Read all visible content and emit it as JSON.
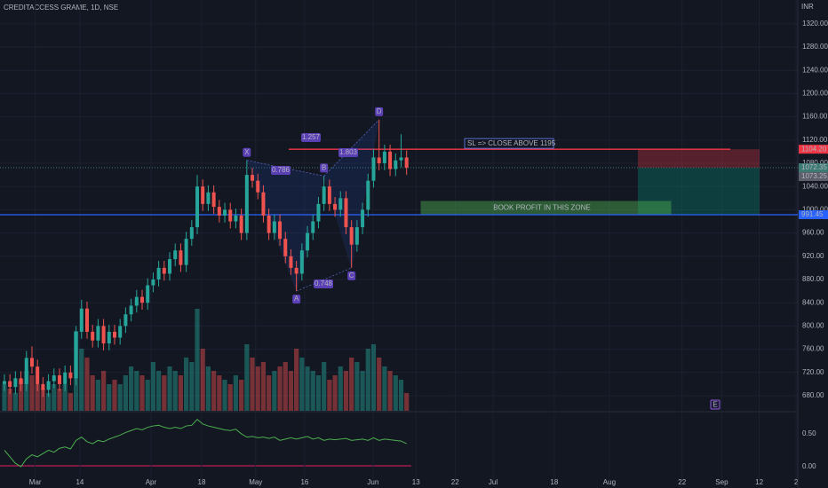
{
  "chart_data": {
    "type": "candlestick",
    "title": "CREDITACCESS GRAME, 1D, NSE",
    "currency": "INR",
    "up_color": "#26a69a",
    "down_color": "#ef5350",
    "open": [
      700,
      705,
      695,
      710,
      700,
      745,
      730,
      700,
      690,
      705,
      715,
      700,
      720,
      710,
      790,
      830,
      790,
      775,
      800,
      770,
      790,
      780,
      800,
      820,
      835,
      850,
      840,
      870,
      880,
      900,
      890,
      915,
      930,
      905,
      950,
      970,
      1040,
      1010,
      1030,
      1005,
      990,
      1000,
      980,
      990,
      960,
      1060,
      1050,
      1030,
      990,
      960,
      980,
      950,
      920,
      900,
      890,
      930,
      960,
      980,
      1010,
      1040,
      1010,
      1000,
      1020,
      970,
      940,
      970,
      1000,
      1050,
      1090,
      1080,
      1100,
      1070,
      1085,
      1090
    ],
    "high": [
      717,
      717,
      722,
      722,
      757,
      765,
      742,
      712,
      717,
      727,
      727,
      732,
      732,
      800,
      845,
      842,
      802,
      812,
      812,
      802,
      802,
      812,
      832,
      847,
      862,
      862,
      882,
      892,
      912,
      912,
      927,
      942,
      942,
      962,
      982,
      1060,
      1052,
      1042,
      1042,
      1017,
      1012,
      1012,
      1002,
      1002,
      1085,
      1072,
      1062,
      1042,
      1002,
      992,
      992,
      962,
      932,
      912,
      942,
      972,
      992,
      1022,
      1058,
      1052,
      1022,
      1032,
      1032,
      982,
      982,
      1012,
      1062,
      1105,
      1155,
      1112,
      1112,
      1097,
      1130,
      1102
    ],
    "low": [
      688,
      683,
      683,
      688,
      688,
      718,
      688,
      678,
      678,
      693,
      688,
      688,
      698,
      698,
      778,
      778,
      763,
      763,
      758,
      758,
      768,
      768,
      788,
      808,
      823,
      828,
      828,
      858,
      868,
      878,
      878,
      903,
      893,
      893,
      938,
      958,
      998,
      998,
      993,
      978,
      978,
      968,
      968,
      948,
      948,
      1038,
      1018,
      978,
      948,
      948,
      938,
      908,
      888,
      860,
      878,
      918,
      948,
      968,
      998,
      998,
      988,
      988,
      958,
      900,
      928,
      958,
      988,
      1038,
      1068,
      1068,
      1058,
      1058,
      1073,
      1060
    ],
    "close": [
      705,
      695,
      710,
      700,
      745,
      730,
      700,
      690,
      705,
      715,
      700,
      720,
      710,
      790,
      830,
      790,
      775,
      800,
      770,
      790,
      780,
      800,
      820,
      835,
      850,
      840,
      870,
      880,
      900,
      890,
      915,
      930,
      905,
      950,
      970,
      1040,
      1010,
      1030,
      1005,
      990,
      1000,
      980,
      990,
      960,
      1060,
      1050,
      1030,
      990,
      960,
      980,
      950,
      920,
      900,
      890,
      930,
      960,
      980,
      1010,
      1040,
      1010,
      1000,
      1020,
      970,
      940,
      970,
      1000,
      1050,
      1090,
      1080,
      1100,
      1070,
      1085,
      1090,
      1072.35
    ],
    "ylim": [
      654,
      1361
    ],
    "yticks": [
      {
        "value": 680,
        "label": "680.00"
      },
      {
        "value": 720,
        "label": "720.00"
      },
      {
        "value": 760,
        "label": "760.00"
      },
      {
        "value": 800,
        "label": "800.00"
      },
      {
        "value": 840,
        "label": "840.00"
      },
      {
        "value": 880,
        "label": "880.00"
      },
      {
        "value": 920,
        "label": "920.00"
      },
      {
        "value": 960,
        "label": "960.00"
      },
      {
        "value": 1000,
        "label": "1000.00"
      },
      {
        "value": 1040,
        "label": "1040.00"
      },
      {
        "value": 1080,
        "label": "1080.00"
      },
      {
        "value": 1120,
        "label": "1120.00"
      },
      {
        "value": 1160,
        "label": "1160.00"
      },
      {
        "value": 1200,
        "label": "1200.00"
      },
      {
        "value": 1240,
        "label": "1240.00"
      },
      {
        "value": 1280,
        "label": "1280.00"
      },
      {
        "value": 1320,
        "label": "1320.00"
      }
    ],
    "xlim": [
      -0.8,
      144
    ],
    "xticks": [
      {
        "value": 5.6,
        "label": "Mar"
      },
      {
        "value": 13.7,
        "label": "14"
      },
      {
        "value": 26.6,
        "label": "Apr"
      },
      {
        "value": 35.8,
        "label": "18"
      },
      {
        "value": 45.6,
        "label": "May"
      },
      {
        "value": 54.5,
        "label": "16"
      },
      {
        "value": 66.9,
        "label": "Jun"
      },
      {
        "value": 74.7,
        "label": "13"
      },
      {
        "value": 81.8,
        "label": "22"
      },
      {
        "value": 88.7,
        "label": "Jul"
      },
      {
        "value": 99.8,
        "label": "18"
      },
      {
        "value": 109.8,
        "label": "Aug"
      },
      {
        "value": 123,
        "label": "22"
      },
      {
        "value": 130.2,
        "label": "Sep"
      },
      {
        "value": 137,
        "label": "12"
      },
      {
        "value": 143.7,
        "label": "2"
      }
    ],
    "volume": {
      "ylim": [
        0,
        120
      ],
      "values": [
        30,
        25,
        20,
        35,
        45,
        40,
        30,
        25,
        20,
        30,
        25,
        30,
        20,
        90,
        70,
        60,
        40,
        35,
        45,
        30,
        35,
        30,
        40,
        50,
        45,
        40,
        35,
        55,
        45,
        40,
        50,
        45,
        40,
        60,
        55,
        115,
        70,
        50,
        45,
        40,
        35,
        30,
        40,
        35,
        75,
        60,
        50,
        55,
        40,
        45,
        50,
        55,
        45,
        70,
        60,
        50,
        45,
        40,
        55,
        35,
        40,
        50,
        45,
        60,
        55,
        45,
        70,
        75,
        60,
        50,
        45,
        40,
        35,
        20
      ]
    },
    "indicator": {
      "color": "#4caf50",
      "ylim": [
        -0.19,
        0.81
      ],
      "yticks": [
        {
          "value": 0.5,
          "label": "0.50"
        },
        {
          "value": 0,
          "label": "0.00"
        }
      ],
      "values": [
        0.25,
        0.15,
        0.05,
        0.0,
        0.12,
        0.18,
        0.15,
        0.2,
        0.25,
        0.22,
        0.28,
        0.3,
        0.27,
        0.4,
        0.45,
        0.38,
        0.35,
        0.4,
        0.38,
        0.42,
        0.45,
        0.48,
        0.52,
        0.55,
        0.58,
        0.56,
        0.6,
        0.62,
        0.63,
        0.6,
        0.58,
        0.6,
        0.58,
        0.62,
        0.63,
        0.72,
        0.65,
        0.62,
        0.6,
        0.58,
        0.56,
        0.55,
        0.57,
        0.5,
        0.45,
        0.46,
        0.44,
        0.45,
        0.43,
        0.45,
        0.4,
        0.42,
        0.44,
        0.42,
        0.44,
        0.46,
        0.42,
        0.44,
        0.4,
        0.42,
        0.41,
        0.42,
        0.43,
        0.4,
        0.41,
        0.42,
        0.4,
        0.44,
        0.4,
        0.42,
        0.41,
        0.4,
        0.39,
        0.35
      ]
    },
    "levels": [
      {
        "value": 1104.2,
        "label": "1104.20",
        "color": "#f23645"
      },
      {
        "value": 1072.35,
        "label": "1072.35",
        "color": "#3d7a74"
      },
      {
        "value": 1073.25,
        "label": "1073.25",
        "color": "#5d606b"
      },
      {
        "value": 991.45,
        "label": "991.45",
        "color": "#2962ff"
      }
    ],
    "pattern": {
      "points": [
        {
          "label": "X",
          "index": 44,
          "value": 1085
        },
        {
          "label": "A",
          "index": 53,
          "value": 860
        },
        {
          "label": "B",
          "index": 58,
          "value": 1058
        },
        {
          "label": "C",
          "index": 63,
          "value": 900
        },
        {
          "label": "D",
          "index": 68,
          "value": 1155
        }
      ],
      "ratios": [
        "1.257",
        "0.786",
        "1.803",
        "0.748"
      ]
    },
    "sl_text": "SL => CLOSE ABOVE 1195",
    "target_text": "BOOK PROFIT IN THIS ZONE",
    "event": "E"
  }
}
